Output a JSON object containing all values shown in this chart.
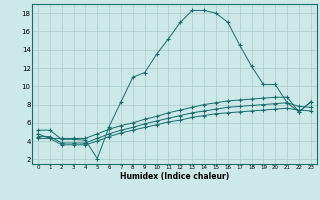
{
  "xlabel": "Humidex (Indice chaleur)",
  "bg_color": "#cce8e8",
  "grid_color": "#aacccc",
  "line_color": "#1a6b6b",
  "xlim": [
    -0.5,
    23.5
  ],
  "ylim": [
    1.5,
    19.0
  ],
  "xticks": [
    0,
    1,
    2,
    3,
    4,
    5,
    6,
    7,
    8,
    9,
    10,
    11,
    12,
    13,
    14,
    15,
    16,
    17,
    18,
    19,
    20,
    21,
    22,
    23
  ],
  "yticks": [
    2,
    4,
    6,
    8,
    10,
    12,
    14,
    16,
    18
  ],
  "line1_x": [
    0,
    1,
    2,
    3,
    4,
    5,
    6,
    7,
    8,
    9,
    10,
    11,
    12,
    13,
    14,
    15,
    16,
    17,
    18,
    19,
    20,
    21,
    22,
    23
  ],
  "line1_y": [
    5.2,
    5.2,
    4.2,
    4.2,
    4.1,
    2.1,
    5.6,
    8.3,
    11.0,
    11.5,
    13.5,
    15.2,
    17.0,
    18.3,
    18.3,
    18.0,
    17.0,
    14.5,
    12.2,
    10.2,
    10.2,
    8.2,
    7.2,
    8.3
  ],
  "line2_x": [
    0,
    1,
    2,
    3,
    4,
    5,
    6,
    7,
    8,
    9,
    10,
    11,
    12,
    13,
    14,
    15,
    16,
    17,
    18,
    19,
    20,
    21,
    22,
    23
  ],
  "line2_y": [
    4.8,
    4.3,
    4.3,
    4.3,
    4.3,
    4.8,
    5.3,
    5.7,
    6.0,
    6.4,
    6.7,
    7.1,
    7.4,
    7.7,
    8.0,
    8.2,
    8.4,
    8.5,
    8.6,
    8.7,
    8.8,
    8.8,
    7.2,
    8.3
  ],
  "line3_x": [
    0,
    1,
    2,
    3,
    4,
    5,
    6,
    7,
    8,
    9,
    10,
    11,
    12,
    13,
    14,
    15,
    16,
    17,
    18,
    19,
    20,
    21,
    22,
    23
  ],
  "line3_y": [
    4.5,
    4.5,
    3.8,
    3.8,
    3.8,
    4.3,
    4.8,
    5.2,
    5.5,
    5.9,
    6.2,
    6.5,
    6.8,
    7.1,
    7.3,
    7.5,
    7.7,
    7.8,
    7.9,
    8.0,
    8.1,
    8.2,
    7.8,
    7.7
  ],
  "line4_x": [
    0,
    1,
    2,
    3,
    4,
    5,
    6,
    7,
    8,
    9,
    10,
    11,
    12,
    13,
    14,
    15,
    16,
    17,
    18,
    19,
    20,
    21,
    22,
    23
  ],
  "line4_y": [
    4.3,
    4.3,
    3.6,
    3.6,
    3.6,
    4.0,
    4.5,
    4.9,
    5.2,
    5.5,
    5.8,
    6.1,
    6.3,
    6.6,
    6.8,
    7.0,
    7.1,
    7.2,
    7.3,
    7.4,
    7.5,
    7.6,
    7.4,
    7.3
  ]
}
